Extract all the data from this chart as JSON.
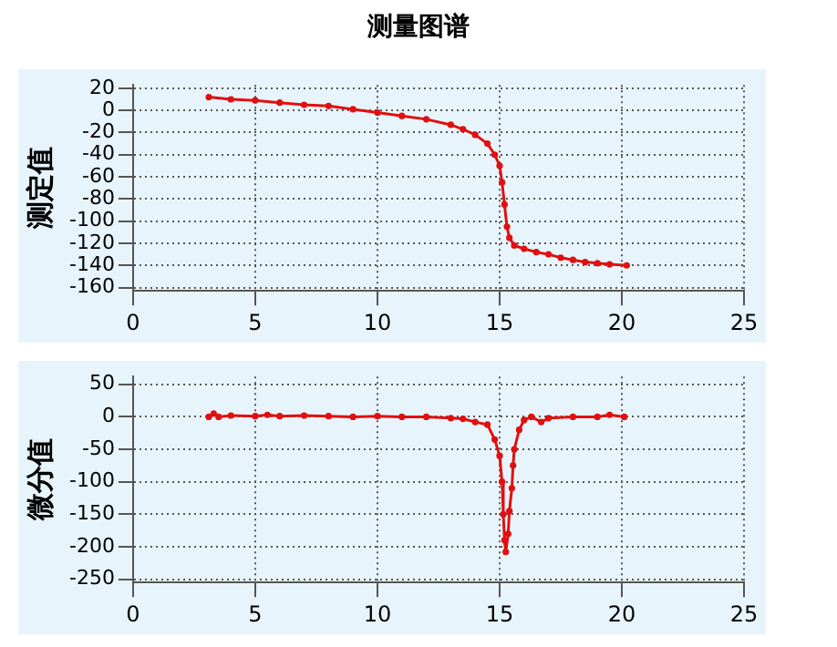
{
  "chart_data": [
    {
      "type": "line",
      "title": "测量图谱",
      "ylabel": "测定值",
      "xlim": [
        0,
        25
      ],
      "xticks": [
        0,
        5,
        10,
        15,
        20,
        25
      ],
      "ylim": [
        -163,
        23
      ],
      "yticks": [
        -160,
        -140,
        -120,
        -100,
        -80,
        -60,
        -40,
        -20,
        0,
        20
      ],
      "grid": true,
      "marker": "circle",
      "line_style": "solid",
      "series": [
        {
          "color": "#e01010",
          "x": [
            3.1,
            4,
            5,
            6,
            7,
            8,
            9,
            10,
            11,
            12,
            13,
            13.5,
            14,
            14.5,
            14.8,
            15,
            15.1,
            15.2,
            15.3,
            15.4,
            15.6,
            16,
            16.5,
            17,
            17.5,
            18,
            18.5,
            19,
            19.5,
            20.2
          ],
          "values": [
            12,
            10,
            9,
            7,
            5,
            4,
            1,
            -2,
            -5,
            -8,
            -13,
            -17,
            -22,
            -30,
            -40,
            -50,
            -65,
            -85,
            -105,
            -115,
            -122,
            -125,
            -128,
            -130,
            -133,
            -135,
            -137,
            -138,
            -139,
            -140
          ]
        }
      ]
    },
    {
      "type": "line",
      "ylabel": "微分值",
      "xlim": [
        0,
        25
      ],
      "xticks": [
        0,
        5,
        10,
        15,
        20,
        25
      ],
      "ylim": [
        -255,
        62
      ],
      "yticks": [
        -250,
        -200,
        -150,
        -100,
        -50,
        0,
        50
      ],
      "grid": true,
      "marker": "circle",
      "line_style": "solid",
      "series": [
        {
          "color": "#e01010",
          "x": [
            3.1,
            3.3,
            3.5,
            4,
            5,
            5.5,
            6,
            7,
            8,
            9,
            10,
            11,
            12,
            13,
            13.5,
            14,
            14.5,
            14.8,
            15,
            15.1,
            15.15,
            15.2,
            15.25,
            15.35,
            15.4,
            15.5,
            15.55,
            15.6,
            15.8,
            16,
            16.3,
            16.7,
            17,
            18,
            19,
            19.5,
            20.1
          ],
          "values": [
            0,
            5,
            0,
            2,
            1,
            3,
            1,
            2,
            1,
            0,
            1,
            0,
            0,
            -2,
            -3,
            -8,
            -12,
            -35,
            -60,
            -100,
            -150,
            -190,
            -208,
            -180,
            -145,
            -110,
            -75,
            -50,
            -20,
            -5,
            0,
            -8,
            -2,
            0,
            0,
            3,
            0
          ]
        }
      ]
    }
  ]
}
